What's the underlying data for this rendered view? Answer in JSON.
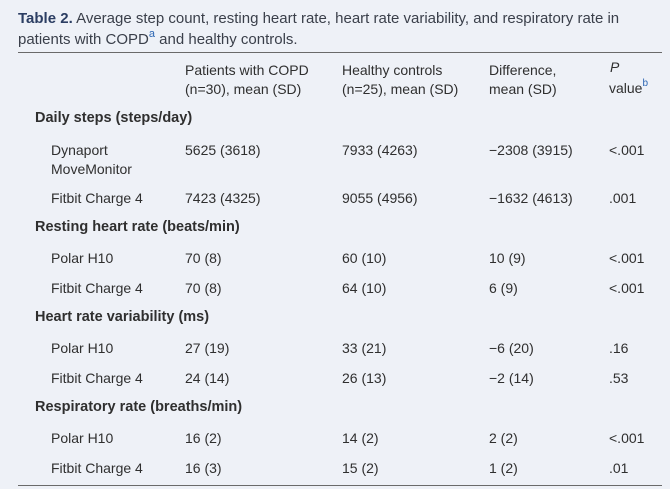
{
  "caption": {
    "label": "Table 2.",
    "text_a": " Average step count, resting heart rate, heart rate variability, and respiratory rate in patients with COPD",
    "sup_a": "a",
    "text_b": " and healthy controls."
  },
  "header": {
    "col1_l1": "Patients with COPD",
    "col1_l2": "(n=30), mean (SD)",
    "col2_l1": "Healthy controls",
    "col2_l2": "(n=25), mean (SD)",
    "col3_l1": "Difference,",
    "col3_l2": "mean (SD)",
    "col4_l1": "P",
    "col4_l2": "value",
    "col4_sup": "b"
  },
  "groups": {
    "steps": "Daily steps (steps/day)",
    "rhr": "Resting heart rate (beats/min)",
    "hrv": "Heart rate variability (ms)",
    "rr": "Respiratory rate (breaths/min)"
  },
  "rows": [
    {
      "device_l1": "Dynaport",
      "device_l2": "MoveMonitor",
      "copd": "5625 (3618)",
      "healthy": "7933 (4263)",
      "diff": "−2308 (3915)",
      "p": "<.001"
    },
    {
      "device_l1": "Fitbit Charge 4",
      "device_l2": "",
      "copd": "7423 (4325)",
      "healthy": "9055 (4956)",
      "diff": "−1632 (4613)",
      "p": ".001"
    },
    {
      "device_l1": "Polar H10",
      "device_l2": "",
      "copd": "70 (8)",
      "healthy": "60 (10)",
      "diff": "10 (9)",
      "p": "<.001"
    },
    {
      "device_l1": "Fitbit Charge 4",
      "device_l2": "",
      "copd": "70 (8)",
      "healthy": "64 (10)",
      "diff": "6 (9)",
      "p": "<.001"
    },
    {
      "device_l1": "Polar H10",
      "device_l2": "",
      "copd": "27 (19)",
      "healthy": "33 (21)",
      "diff": "−6 (20)",
      "p": ".16"
    },
    {
      "device_l1": "Fitbit Charge 4",
      "device_l2": "",
      "copd": "24 (14)",
      "healthy": "26 (13)",
      "diff": "−2 (14)",
      "p": ".53"
    },
    {
      "device_l1": "Polar H10",
      "device_l2": "",
      "copd": "16 (2)",
      "healthy": "14 (2)",
      "diff": "2 (2)",
      "p": "<.001"
    },
    {
      "device_l1": "Fitbit Charge 4",
      "device_l2": "",
      "copd": "16 (3)",
      "healthy": "15 (2)",
      "diff": "1 (2)",
      "p": ".01"
    }
  ]
}
